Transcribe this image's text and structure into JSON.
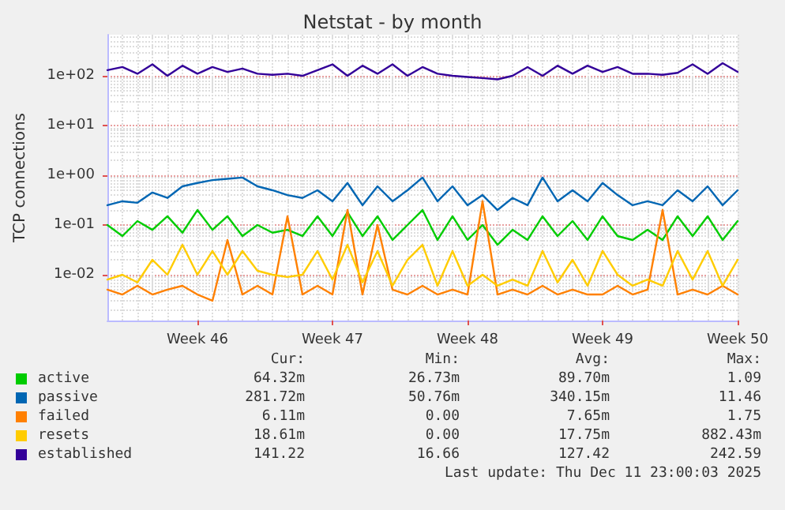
{
  "chart_data": {
    "type": "line",
    "title": "Netstat - by month",
    "ylabel": "TCP connections",
    "categories": [
      null,
      null,
      null,
      null,
      null,
      null,
      "Week 46",
      null,
      null,
      null,
      null,
      null,
      null,
      null,
      null,
      "Week 47",
      null,
      null,
      null,
      null,
      null,
      null,
      null,
      null,
      "Week 48",
      null,
      null,
      null,
      null,
      null,
      null,
      null,
      null,
      "Week 49",
      null,
      null,
      null,
      null,
      null,
      null,
      null,
      null,
      "Week 50"
    ],
    "ylim": [
      0.0012,
      670
    ],
    "yticks": [
      {
        "value": 0.01,
        "label": "1e-02"
      },
      {
        "value": 0.1,
        "label": "1e-01"
      },
      {
        "value": 1,
        "label": "1e+00"
      },
      {
        "value": 10,
        "label": "1e+01"
      },
      {
        "value": 100,
        "label": "1e+02"
      }
    ],
    "log": "y",
    "grid": true,
    "legend": "bottom left",
    "marker": "none",
    "line_style": "solid",
    "series": [
      {
        "name": "active",
        "color": "#00cc00",
        "values": [
          0.1,
          0.06,
          0.12,
          0.08,
          0.15,
          0.07,
          0.2,
          0.08,
          0.15,
          0.06,
          0.1,
          0.07,
          0.08,
          0.06,
          0.15,
          0.06,
          0.18,
          0.06,
          0.15,
          0.05,
          0.1,
          0.2,
          0.05,
          0.15,
          0.05,
          0.1,
          0.04,
          0.08,
          0.05,
          0.15,
          0.06,
          0.12,
          0.05,
          0.15,
          0.06,
          0.05,
          0.08,
          0.05,
          0.15,
          0.06,
          0.15,
          0.05,
          0.12
        ]
      },
      {
        "name": "passive",
        "color": "#0066b3",
        "values": [
          0.25,
          0.3,
          0.28,
          0.45,
          0.35,
          0.6,
          0.7,
          0.8,
          0.85,
          0.9,
          0.6,
          0.5,
          0.4,
          0.35,
          0.5,
          0.3,
          0.7,
          0.25,
          0.6,
          0.3,
          0.5,
          0.9,
          0.3,
          0.6,
          0.25,
          0.4,
          0.2,
          0.35,
          0.25,
          0.9,
          0.3,
          0.5,
          0.3,
          0.7,
          0.4,
          0.25,
          0.3,
          0.25,
          0.5,
          0.3,
          0.6,
          0.25,
          0.5
        ]
      },
      {
        "name": "failed",
        "color": "#ff8000",
        "values": [
          0.005,
          0.004,
          0.006,
          0.004,
          0.005,
          0.006,
          0.004,
          0.003,
          0.05,
          0.004,
          0.006,
          0.004,
          0.15,
          0.004,
          0.006,
          0.004,
          0.2,
          0.004,
          0.1,
          0.005,
          0.004,
          0.006,
          0.004,
          0.005,
          0.004,
          0.3,
          0.004,
          0.005,
          0.004,
          0.006,
          0.004,
          0.005,
          0.004,
          0.004,
          0.006,
          0.004,
          0.005,
          0.2,
          0.004,
          0.005,
          0.004,
          0.006,
          0.004
        ]
      },
      {
        "name": "resets",
        "color": "#ffcc00",
        "values": [
          0.008,
          0.01,
          0.007,
          0.02,
          0.01,
          0.04,
          0.01,
          0.03,
          0.01,
          0.03,
          0.012,
          0.01,
          0.009,
          0.01,
          0.03,
          0.008,
          0.04,
          0.007,
          0.03,
          0.006,
          0.02,
          0.04,
          0.006,
          0.03,
          0.006,
          0.01,
          0.006,
          0.008,
          0.006,
          0.03,
          0.007,
          0.02,
          0.006,
          0.03,
          0.01,
          0.006,
          0.008,
          0.006,
          0.03,
          0.008,
          0.03,
          0.006,
          0.02
        ]
      },
      {
        "name": "established",
        "color": "#330099",
        "values": [
          130,
          150,
          110,
          170,
          100,
          160,
          110,
          150,
          120,
          140,
          110,
          105,
          110,
          100,
          130,
          170,
          100,
          160,
          110,
          170,
          100,
          150,
          110,
          100,
          95,
          90,
          85,
          100,
          150,
          100,
          160,
          110,
          160,
          120,
          150,
          110,
          110,
          105,
          115,
          170,
          110,
          180,
          120
        ]
      }
    ],
    "annotations": [
      "Cur:",
      "Min:",
      "Avg:",
      "Max:",
      "64.32m",
      "26.73m",
      "89.70m",
      "1.09",
      "281.72m",
      "50.76m",
      "340.15m",
      "11.46",
      "6.11m",
      "0.00",
      "7.65m",
      "1.75",
      "18.61m",
      "0.00",
      "17.75m",
      "882.43m",
      "141.22",
      "16.66",
      "127.42",
      "242.59",
      "Last update: Thu Dec 11 23:00:03 2025"
    ]
  }
}
